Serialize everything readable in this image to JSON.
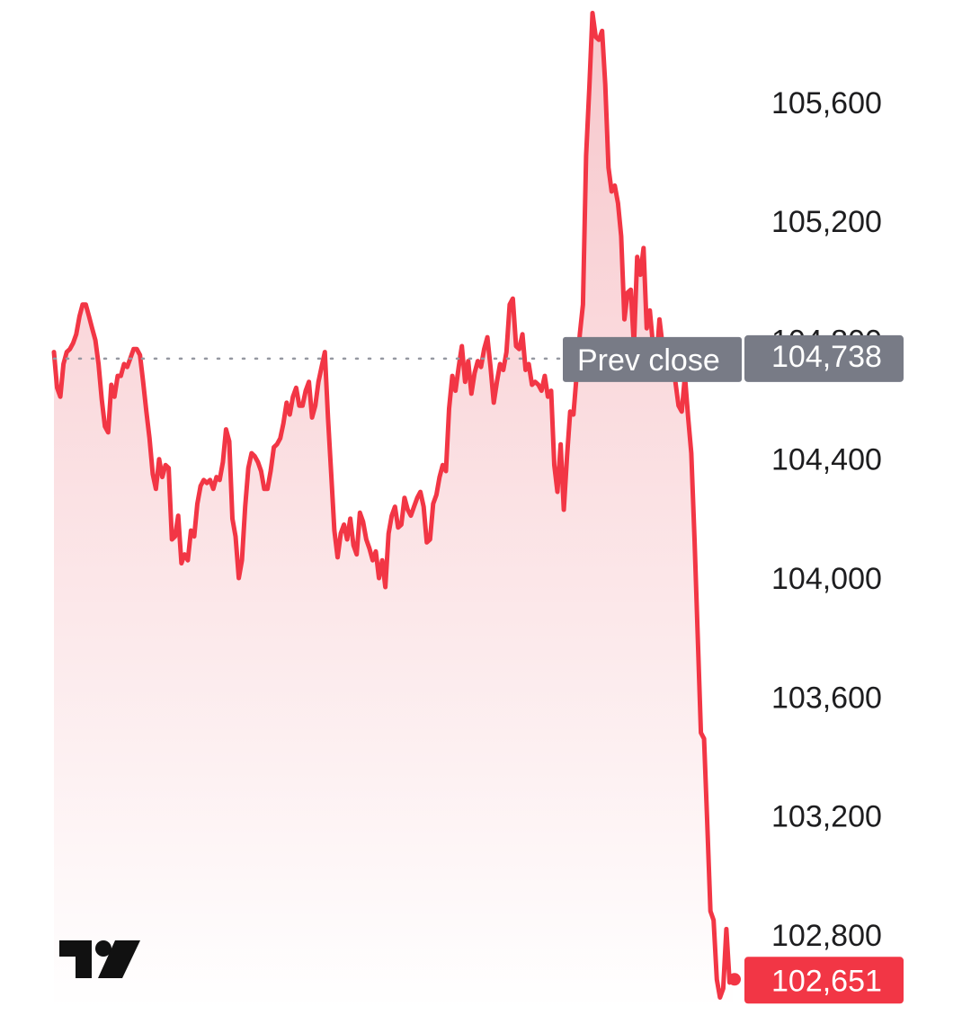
{
  "colors": {
    "line": "#f23645",
    "fill_top": "#f7c4c9",
    "fill_bottom": "#ffffff",
    "prev_close_tag": "#787b86",
    "last_price_tag": "#f23645",
    "axis_text": "#1d1d1f",
    "prev_close_line": "#9598a1"
  },
  "icons": {
    "logo": "tradingview-logo-icon"
  },
  "chart_data": {
    "type": "area",
    "title": "",
    "xlabel": "",
    "ylabel": "",
    "ylim": [
      102560,
      105880
    ],
    "y_ticks": [
      "105,600",
      "105,200",
      "104,800",
      "104,400",
      "104,000",
      "103,600",
      "103,200",
      "102,800"
    ],
    "y_tick_values": [
      105600,
      105200,
      104800,
      104400,
      104000,
      103600,
      103200,
      102800
    ],
    "grid": false,
    "prev_close": {
      "label": "Prev close",
      "value": 104738,
      "display": "104,738"
    },
    "last_price": {
      "value": 102651,
      "display": "102,651"
    },
    "series": [
      {
        "values": [
          104760,
          104640,
          104610,
          104720,
          104760,
          104770,
          104790,
          104820,
          104880,
          104920,
          104920,
          104880,
          104840,
          104800,
          104720,
          104600,
          104510,
          104490,
          104650,
          104610,
          104680,
          104680,
          104720,
          104710,
          104740,
          104770,
          104770,
          104750,
          104660,
          104560,
          104470,
          104350,
          104300,
          104400,
          104340,
          104380,
          104370,
          104130,
          104140,
          104210,
          104050,
          104080,
          104060,
          104160,
          104140,
          104250,
          104310,
          104330,
          104320,
          104330,
          104300,
          104340,
          104330,
          104390,
          104500,
          104460,
          104200,
          104140,
          104000,
          104060,
          104240,
          104370,
          104420,
          104410,
          104390,
          104360,
          104300,
          104300,
          104360,
          104440,
          104450,
          104470,
          104520,
          104590,
          104550,
          104610,
          104640,
          104580,
          104580,
          104630,
          104660,
          104540,
          104580,
          104660,
          104710,
          104760,
          104540,
          104350,
          104160,
          104070,
          104150,
          104180,
          104130,
          104200,
          104110,
          104080,
          104220,
          104190,
          104130,
          104100,
          104060,
          104090,
          104000,
          104060,
          103970,
          104150,
          104210,
          104240,
          104170,
          104180,
          104270,
          104230,
          104210,
          104240,
          104270,
          104290,
          104240,
          104120,
          104130,
          104250,
          104280,
          104340,
          104380,
          104360,
          104570,
          104680,
          104630,
          104710,
          104780,
          104660,
          104730,
          104620,
          104690,
          104730,
          104710,
          104770,
          104810,
          104710,
          104590,
          104660,
          104720,
          104700,
          104760,
          104920,
          104940,
          104780,
          104770,
          104820,
          104700,
          104720,
          104650,
          104660,
          104650,
          104630,
          104680,
          104610,
          104630,
          104380,
          104290,
          104450,
          104230,
          104410,
          104560,
          104550,
          104680,
          104820,
          104920,
          105420,
          105650,
          105900,
          105820,
          105810,
          105840,
          105660,
          105380,
          105300,
          105320,
          105260,
          105150,
          104870,
          104960,
          104970,
          104780,
          105080,
          105020,
          105110,
          104840,
          104900,
          104780,
          104720,
          104870,
          104780,
          104780,
          104720,
          104700,
          104660,
          104580,
          104560,
          104680,
          104540,
          104420,
          104130,
          103810,
          103480,
          103460,
          103180,
          102880,
          102850,
          102650,
          102590,
          102620,
          102820,
          102640,
          102651
        ]
      }
    ]
  }
}
